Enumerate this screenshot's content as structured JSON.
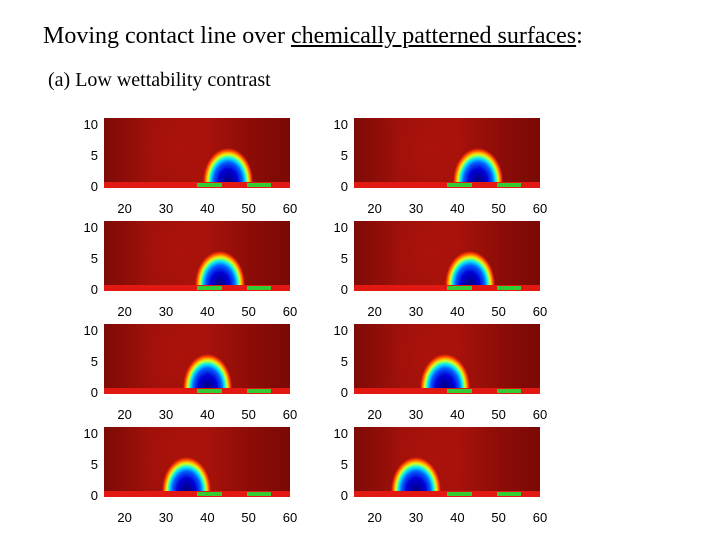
{
  "title": {
    "prefix": "Moving contact line over ",
    "underlined": "chemically patterned surfaces",
    "suffix": ":"
  },
  "subtitle": "(a) Low wettability contrast",
  "axes": {
    "y_ticks": [
      "10",
      "5",
      "0"
    ],
    "x_ticks": [
      "20",
      "30",
      "40",
      "50",
      "60"
    ],
    "x_range": [
      15,
      60
    ],
    "y_range": [
      0,
      10
    ]
  },
  "pattern": {
    "green_stripes": [
      [
        37.5,
        43.5
      ],
      [
        49.5,
        55.5
      ]
    ]
  },
  "colors": {
    "wettable_stripe": "#33cc33",
    "substrate": "#e21812",
    "background_field": "#a0110a",
    "droplet_core": "#0000d8"
  },
  "panels": [
    {
      "id": "r1c1",
      "drop_center": 45,
      "drop_width": 12
    },
    {
      "id": "r1c2",
      "drop_center": 45,
      "drop_width": 12
    },
    {
      "id": "r2c1",
      "drop_center": 43,
      "drop_width": 12
    },
    {
      "id": "r2c2",
      "drop_center": 43,
      "drop_width": 12
    },
    {
      "id": "r3c1",
      "drop_center": 40,
      "drop_width": 12
    },
    {
      "id": "r3c2",
      "drop_center": 37,
      "drop_width": 12
    },
    {
      "id": "r4c1",
      "drop_center": 35,
      "drop_width": 12
    },
    {
      "id": "r4c2",
      "drop_center": 30,
      "drop_width": 12
    }
  ]
}
